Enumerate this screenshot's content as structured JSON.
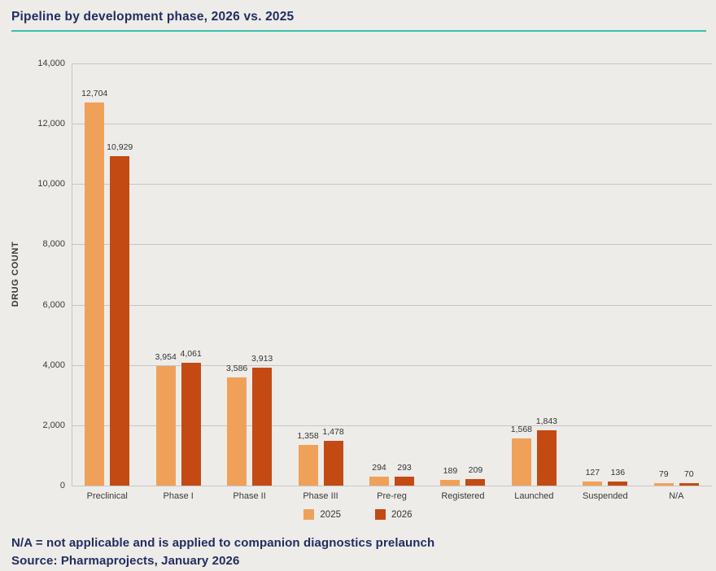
{
  "title": "Pipeline by development phase, 2026 vs. 2025",
  "footer": {
    "note": "N/A = not applicable and is applied to companion diagnostics prelaunch",
    "source": "Source: Pharmaprojects, January 2026"
  },
  "colors": {
    "background": "#edece9",
    "title_text": "#232d5f",
    "title_underline": "#3cbfae",
    "gridline": "#c7c6c3",
    "axis_text": "#3a3a3a",
    "series_2025": "#f0a159",
    "series_2026": "#c34a12"
  },
  "chart_data": {
    "type": "bar",
    "title": "Pipeline by development phase, 2026 vs. 2025",
    "categories": [
      "Preclinical",
      "Phase I",
      "Phase II",
      "Phase III",
      "Pre-reg",
      "Registered",
      "Launched",
      "Suspended",
      "N/A"
    ],
    "series": [
      {
        "name": "2025",
        "color": "#f0a159",
        "values": [
          12704,
          3954,
          3586,
          1358,
          294,
          189,
          1568,
          127,
          79
        ]
      },
      {
        "name": "2026",
        "color": "#c34a12",
        "values": [
          10929,
          4061,
          3913,
          1478,
          293,
          209,
          1843,
          136,
          70
        ]
      }
    ],
    "xlabel": "",
    "ylabel": "DRUG COUNT",
    "ylim": [
      0,
      14000
    ],
    "ytick_step": 2000,
    "ytick_labels": [
      "0",
      "2,000",
      "4,000",
      "6,000",
      "8,000",
      "10,000",
      "12,000",
      "14,000"
    ],
    "grid": true,
    "legend_position": "bottom",
    "value_label_format": "thousands-comma"
  }
}
